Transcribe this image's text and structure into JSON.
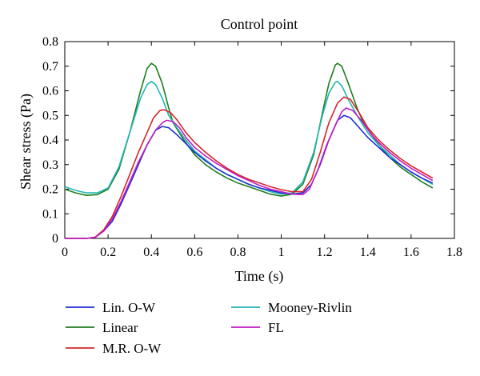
{
  "chart_data": {
    "type": "line",
    "title": "Control point",
    "xlabel": "Time (s)",
    "ylabel": "Shear stress (Pa)",
    "xlim": [
      0,
      1.8
    ],
    "ylim": [
      0,
      0.8
    ],
    "x_ticks": [
      "0",
      "0.2",
      "0.4",
      "0.6",
      "0.8",
      "1",
      "1.2",
      "1.4",
      "1.6",
      "1.8"
    ],
    "y_ticks": [
      "0",
      "0.1",
      "0.2",
      "0.3",
      "0.4",
      "0.5",
      "0.6",
      "0.7",
      "0.8"
    ],
    "grid": false,
    "legend_position": "bottom",
    "series": [
      {
        "name": "Lin. O-W",
        "color": "#1f2fd6",
        "points": [
          [
            0,
            0
          ],
          [
            0.1,
            0
          ],
          [
            0.14,
            0.005
          ],
          [
            0.18,
            0.03
          ],
          [
            0.22,
            0.07
          ],
          [
            0.26,
            0.14
          ],
          [
            0.3,
            0.22
          ],
          [
            0.34,
            0.3
          ],
          [
            0.38,
            0.38
          ],
          [
            0.42,
            0.44
          ],
          [
            0.45,
            0.455
          ],
          [
            0.48,
            0.45
          ],
          [
            0.52,
            0.42
          ],
          [
            0.56,
            0.385
          ],
          [
            0.6,
            0.35
          ],
          [
            0.65,
            0.315
          ],
          [
            0.7,
            0.285
          ],
          [
            0.75,
            0.26
          ],
          [
            0.8,
            0.24
          ],
          [
            0.85,
            0.22
          ],
          [
            0.9,
            0.205
          ],
          [
            0.95,
            0.195
          ],
          [
            1.0,
            0.185
          ],
          [
            1.05,
            0.18
          ],
          [
            1.1,
            0.185
          ],
          [
            1.14,
            0.22
          ],
          [
            1.18,
            0.3
          ],
          [
            1.22,
            0.4
          ],
          [
            1.26,
            0.48
          ],
          [
            1.29,
            0.5
          ],
          [
            1.32,
            0.49
          ],
          [
            1.36,
            0.45
          ],
          [
            1.4,
            0.41
          ],
          [
            1.45,
            0.37
          ],
          [
            1.5,
            0.33
          ],
          [
            1.55,
            0.3
          ],
          [
            1.6,
            0.27
          ],
          [
            1.65,
            0.245
          ],
          [
            1.7,
            0.225
          ]
        ]
      },
      {
        "name": "Linear",
        "color": "#1e7e1e",
        "points": [
          [
            0,
            0.2
          ],
          [
            0.05,
            0.185
          ],
          [
            0.1,
            0.175
          ],
          [
            0.15,
            0.178
          ],
          [
            0.2,
            0.2
          ],
          [
            0.25,
            0.28
          ],
          [
            0.3,
            0.43
          ],
          [
            0.35,
            0.6
          ],
          [
            0.38,
            0.69
          ],
          [
            0.4,
            0.712
          ],
          [
            0.42,
            0.7
          ],
          [
            0.45,
            0.63
          ],
          [
            0.48,
            0.53
          ],
          [
            0.5,
            0.47
          ],
          [
            0.55,
            0.4
          ],
          [
            0.6,
            0.34
          ],
          [
            0.65,
            0.3
          ],
          [
            0.7,
            0.27
          ],
          [
            0.75,
            0.245
          ],
          [
            0.8,
            0.225
          ],
          [
            0.85,
            0.21
          ],
          [
            0.9,
            0.195
          ],
          [
            0.95,
            0.18
          ],
          [
            1.0,
            0.172
          ],
          [
            1.05,
            0.18
          ],
          [
            1.1,
            0.22
          ],
          [
            1.15,
            0.34
          ],
          [
            1.19,
            0.51
          ],
          [
            1.22,
            0.63
          ],
          [
            1.25,
            0.705
          ],
          [
            1.26,
            0.712
          ],
          [
            1.28,
            0.7
          ],
          [
            1.31,
            0.63
          ],
          [
            1.35,
            0.53
          ],
          [
            1.38,
            0.47
          ],
          [
            1.42,
            0.42
          ],
          [
            1.46,
            0.37
          ],
          [
            1.5,
            0.33
          ],
          [
            1.55,
            0.29
          ],
          [
            1.6,
            0.26
          ],
          [
            1.65,
            0.23
          ],
          [
            1.7,
            0.205
          ]
        ]
      },
      {
        "name": "M.R. O-W",
        "color": "#d7262c",
        "points": [
          [
            0,
            0
          ],
          [
            0.1,
            0
          ],
          [
            0.14,
            0.005
          ],
          [
            0.18,
            0.035
          ],
          [
            0.22,
            0.09
          ],
          [
            0.26,
            0.17
          ],
          [
            0.3,
            0.26
          ],
          [
            0.34,
            0.35
          ],
          [
            0.38,
            0.43
          ],
          [
            0.41,
            0.49
          ],
          [
            0.44,
            0.52
          ],
          [
            0.46,
            0.523
          ],
          [
            0.49,
            0.51
          ],
          [
            0.52,
            0.48
          ],
          [
            0.56,
            0.43
          ],
          [
            0.6,
            0.39
          ],
          [
            0.65,
            0.35
          ],
          [
            0.7,
            0.315
          ],
          [
            0.75,
            0.285
          ],
          [
            0.8,
            0.26
          ],
          [
            0.85,
            0.24
          ],
          [
            0.9,
            0.225
          ],
          [
            0.95,
            0.21
          ],
          [
            1.0,
            0.198
          ],
          [
            1.05,
            0.19
          ],
          [
            1.1,
            0.19
          ],
          [
            1.14,
            0.24
          ],
          [
            1.18,
            0.35
          ],
          [
            1.22,
            0.47
          ],
          [
            1.26,
            0.55
          ],
          [
            1.29,
            0.575
          ],
          [
            1.32,
            0.565
          ],
          [
            1.36,
            0.51
          ],
          [
            1.4,
            0.45
          ],
          [
            1.45,
            0.4
          ],
          [
            1.5,
            0.36
          ],
          [
            1.55,
            0.325
          ],
          [
            1.6,
            0.295
          ],
          [
            1.65,
            0.27
          ],
          [
            1.7,
            0.245
          ]
        ]
      },
      {
        "name": "Mooney-Rivlin",
        "color": "#22b5b5",
        "points": [
          [
            0,
            0.21
          ],
          [
            0.05,
            0.195
          ],
          [
            0.1,
            0.185
          ],
          [
            0.15,
            0.185
          ],
          [
            0.2,
            0.205
          ],
          [
            0.25,
            0.29
          ],
          [
            0.3,
            0.43
          ],
          [
            0.35,
            0.57
          ],
          [
            0.38,
            0.625
          ],
          [
            0.4,
            0.638
          ],
          [
            0.42,
            0.625
          ],
          [
            0.45,
            0.57
          ],
          [
            0.48,
            0.5
          ],
          [
            0.51,
            0.46
          ],
          [
            0.55,
            0.41
          ],
          [
            0.6,
            0.355
          ],
          [
            0.65,
            0.32
          ],
          [
            0.7,
            0.285
          ],
          [
            0.75,
            0.26
          ],
          [
            0.8,
            0.24
          ],
          [
            0.85,
            0.22
          ],
          [
            0.9,
            0.205
          ],
          [
            0.95,
            0.19
          ],
          [
            1.0,
            0.18
          ],
          [
            1.05,
            0.185
          ],
          [
            1.1,
            0.23
          ],
          [
            1.15,
            0.35
          ],
          [
            1.19,
            0.5
          ],
          [
            1.22,
            0.59
          ],
          [
            1.25,
            0.635
          ],
          [
            1.26,
            0.638
          ],
          [
            1.28,
            0.62
          ],
          [
            1.31,
            0.565
          ],
          [
            1.35,
            0.5
          ],
          [
            1.4,
            0.43
          ],
          [
            1.45,
            0.38
          ],
          [
            1.5,
            0.34
          ],
          [
            1.55,
            0.3
          ],
          [
            1.6,
            0.27
          ],
          [
            1.65,
            0.245
          ],
          [
            1.7,
            0.22
          ]
        ]
      },
      {
        "name": "FL",
        "color": "#c21cc2",
        "points": [
          [
            0,
            0
          ],
          [
            0.1,
            0
          ],
          [
            0.14,
            0.004
          ],
          [
            0.18,
            0.03
          ],
          [
            0.22,
            0.08
          ],
          [
            0.26,
            0.15
          ],
          [
            0.3,
            0.23
          ],
          [
            0.34,
            0.31
          ],
          [
            0.38,
            0.38
          ],
          [
            0.42,
            0.44
          ],
          [
            0.45,
            0.47
          ],
          [
            0.47,
            0.48
          ],
          [
            0.5,
            0.475
          ],
          [
            0.53,
            0.45
          ],
          [
            0.56,
            0.41
          ],
          [
            0.6,
            0.37
          ],
          [
            0.65,
            0.335
          ],
          [
            0.7,
            0.305
          ],
          [
            0.75,
            0.28
          ],
          [
            0.8,
            0.255
          ],
          [
            0.85,
            0.235
          ],
          [
            0.9,
            0.215
          ],
          [
            0.95,
            0.2
          ],
          [
            1.0,
            0.19
          ],
          [
            1.05,
            0.18
          ],
          [
            1.1,
            0.178
          ],
          [
            1.13,
            0.2
          ],
          [
            1.17,
            0.28
          ],
          [
            1.21,
            0.38
          ],
          [
            1.25,
            0.46
          ],
          [
            1.28,
            0.515
          ],
          [
            1.3,
            0.53
          ],
          [
            1.33,
            0.52
          ],
          [
            1.37,
            0.48
          ],
          [
            1.41,
            0.43
          ],
          [
            1.45,
            0.39
          ],
          [
            1.5,
            0.35
          ],
          [
            1.55,
            0.315
          ],
          [
            1.6,
            0.285
          ],
          [
            1.65,
            0.26
          ],
          [
            1.7,
            0.235
          ]
        ]
      }
    ]
  }
}
